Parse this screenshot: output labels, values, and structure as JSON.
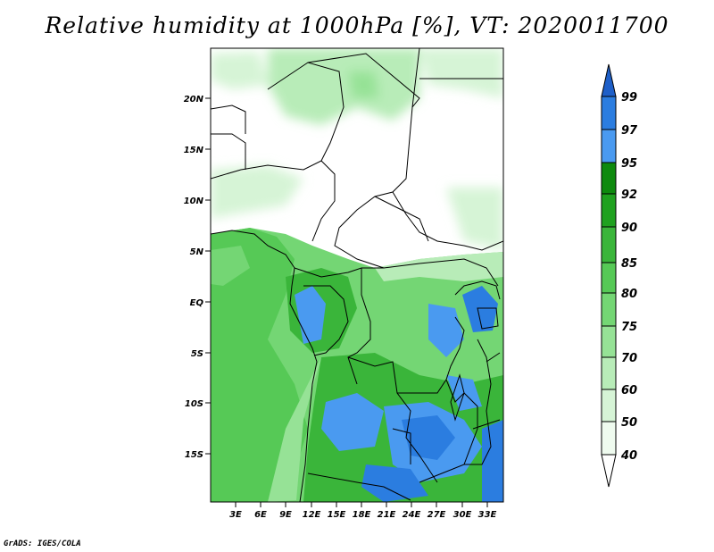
{
  "title": "Relative humidity at 1000hPa [%], VT: 2020011700",
  "credit": "GrADS: IGES/COLA",
  "map": {
    "lat_labels": [
      "20N",
      "15N",
      "10N",
      "5N",
      "EQ",
      "5S",
      "10S",
      "15S"
    ],
    "lon_labels": [
      "3E",
      "6E",
      "9E",
      "12E",
      "15E",
      "18E",
      "21E",
      "24E",
      "27E",
      "30E",
      "33E"
    ]
  },
  "colorbar": {
    "levels": [
      "99",
      "97",
      "95",
      "92",
      "90",
      "85",
      "80",
      "75",
      "70",
      "60",
      "50",
      "40"
    ],
    "colors": [
      "#1e5fc8",
      "#2b7de0",
      "#4a9af0",
      "#0e8a0e",
      "#1fa11f",
      "#3ab53a",
      "#56c956",
      "#74d674",
      "#96e296",
      "#b8ecb8",
      "#d6f4d6",
      "#effbef"
    ]
  }
}
